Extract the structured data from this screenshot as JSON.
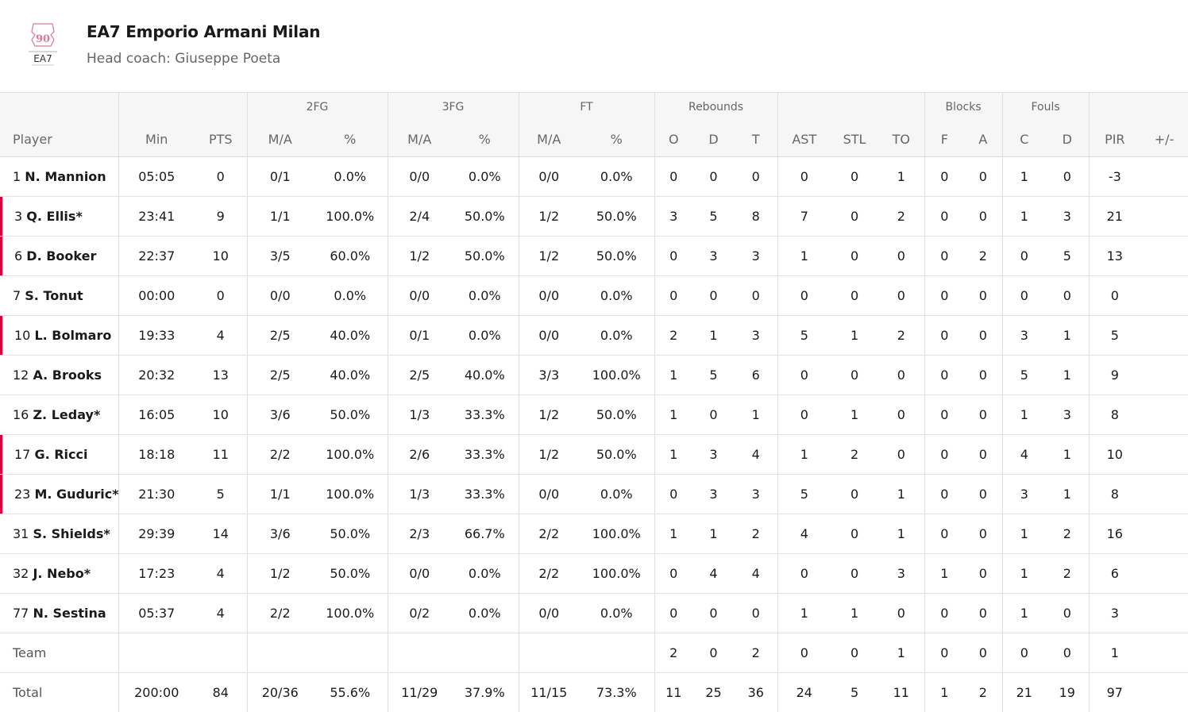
{
  "team": {
    "name": "EA7 Emporio Armani Milan",
    "coach": "Head coach: Giuseppe Poeta",
    "logo_text": "EA7",
    "logo_number": "90",
    "accent_color": "#d5003b"
  },
  "groups": {
    "fg2": "2FG",
    "fg3": "3FG",
    "ft": "FT",
    "rebounds": "Rebounds",
    "blocks": "Blocks",
    "fouls": "Fouls"
  },
  "columns": {
    "player": "Player",
    "min": "Min",
    "pts": "PTS",
    "fg2_ma": "M/A",
    "fg2_pct": "%",
    "fg3_ma": "M/A",
    "fg3_pct": "%",
    "ft_ma": "M/A",
    "ft_pct": "%",
    "reb_o": "O",
    "reb_d": "D",
    "reb_t": "T",
    "ast": "AST",
    "stl": "STL",
    "to": "TO",
    "blk_f": "F",
    "blk_a": "A",
    "foul_c": "C",
    "foul_d": "D",
    "pir": "PIR",
    "plusminus": "+/-"
  },
  "players": [
    {
      "num": "1",
      "name": "N. Mannion",
      "starter": false,
      "min": "05:05",
      "pts": "0",
      "fg2_ma": "0/1",
      "fg2_pct": "0.0%",
      "fg3_ma": "0/0",
      "fg3_pct": "0.0%",
      "ft_ma": "0/0",
      "ft_pct": "0.0%",
      "reb_o": "0",
      "reb_d": "0",
      "reb_t": "0",
      "ast": "0",
      "stl": "0",
      "to": "1",
      "blk_f": "0",
      "blk_a": "0",
      "foul_c": "1",
      "foul_d": "0",
      "pir": "-3",
      "plusminus": ""
    },
    {
      "num": "3",
      "name": "Q. Ellis*",
      "starter": true,
      "min": "23:41",
      "pts": "9",
      "fg2_ma": "1/1",
      "fg2_pct": "100.0%",
      "fg3_ma": "2/4",
      "fg3_pct": "50.0%",
      "ft_ma": "1/2",
      "ft_pct": "50.0%",
      "reb_o": "3",
      "reb_d": "5",
      "reb_t": "8",
      "ast": "7",
      "stl": "0",
      "to": "2",
      "blk_f": "0",
      "blk_a": "0",
      "foul_c": "1",
      "foul_d": "3",
      "pir": "21",
      "plusminus": ""
    },
    {
      "num": "6",
      "name": "D. Booker",
      "starter": true,
      "min": "22:37",
      "pts": "10",
      "fg2_ma": "3/5",
      "fg2_pct": "60.0%",
      "fg3_ma": "1/2",
      "fg3_pct": "50.0%",
      "ft_ma": "1/2",
      "ft_pct": "50.0%",
      "reb_o": "0",
      "reb_d": "3",
      "reb_t": "3",
      "ast": "1",
      "stl": "0",
      "to": "0",
      "blk_f": "0",
      "blk_a": "2",
      "foul_c": "0",
      "foul_d": "5",
      "pir": "13",
      "plusminus": ""
    },
    {
      "num": "7",
      "name": "S. Tonut",
      "starter": false,
      "min": "00:00",
      "pts": "0",
      "fg2_ma": "0/0",
      "fg2_pct": "0.0%",
      "fg3_ma": "0/0",
      "fg3_pct": "0.0%",
      "ft_ma": "0/0",
      "ft_pct": "0.0%",
      "reb_o": "0",
      "reb_d": "0",
      "reb_t": "0",
      "ast": "0",
      "stl": "0",
      "to": "0",
      "blk_f": "0",
      "blk_a": "0",
      "foul_c": "0",
      "foul_d": "0",
      "pir": "0",
      "plusminus": ""
    },
    {
      "num": "10",
      "name": "L. Bolmaro",
      "starter": true,
      "min": "19:33",
      "pts": "4",
      "fg2_ma": "2/5",
      "fg2_pct": "40.0%",
      "fg3_ma": "0/1",
      "fg3_pct": "0.0%",
      "ft_ma": "0/0",
      "ft_pct": "0.0%",
      "reb_o": "2",
      "reb_d": "1",
      "reb_t": "3",
      "ast": "5",
      "stl": "1",
      "to": "2",
      "blk_f": "0",
      "blk_a": "0",
      "foul_c": "3",
      "foul_d": "1",
      "pir": "5",
      "plusminus": ""
    },
    {
      "num": "12",
      "name": "A. Brooks",
      "starter": false,
      "min": "20:32",
      "pts": "13",
      "fg2_ma": "2/5",
      "fg2_pct": "40.0%",
      "fg3_ma": "2/5",
      "fg3_pct": "40.0%",
      "ft_ma": "3/3",
      "ft_pct": "100.0%",
      "reb_o": "1",
      "reb_d": "5",
      "reb_t": "6",
      "ast": "0",
      "stl": "0",
      "to": "0",
      "blk_f": "0",
      "blk_a": "0",
      "foul_c": "5",
      "foul_d": "1",
      "pir": "9",
      "plusminus": ""
    },
    {
      "num": "16",
      "name": "Z. Leday*",
      "starter": false,
      "min": "16:05",
      "pts": "10",
      "fg2_ma": "3/6",
      "fg2_pct": "50.0%",
      "fg3_ma": "1/3",
      "fg3_pct": "33.3%",
      "ft_ma": "1/2",
      "ft_pct": "50.0%",
      "reb_o": "1",
      "reb_d": "0",
      "reb_t": "1",
      "ast": "0",
      "stl": "1",
      "to": "0",
      "blk_f": "0",
      "blk_a": "0",
      "foul_c": "1",
      "foul_d": "3",
      "pir": "8",
      "plusminus": ""
    },
    {
      "num": "17",
      "name": "G. Ricci",
      "starter": true,
      "min": "18:18",
      "pts": "11",
      "fg2_ma": "2/2",
      "fg2_pct": "100.0%",
      "fg3_ma": "2/6",
      "fg3_pct": "33.3%",
      "ft_ma": "1/2",
      "ft_pct": "50.0%",
      "reb_o": "1",
      "reb_d": "3",
      "reb_t": "4",
      "ast": "1",
      "stl": "2",
      "to": "0",
      "blk_f": "0",
      "blk_a": "0",
      "foul_c": "4",
      "foul_d": "1",
      "pir": "10",
      "plusminus": ""
    },
    {
      "num": "23",
      "name": "M. Guduric*",
      "starter": true,
      "min": "21:30",
      "pts": "5",
      "fg2_ma": "1/1",
      "fg2_pct": "100.0%",
      "fg3_ma": "1/3",
      "fg3_pct": "33.3%",
      "ft_ma": "0/0",
      "ft_pct": "0.0%",
      "reb_o": "0",
      "reb_d": "3",
      "reb_t": "3",
      "ast": "5",
      "stl": "0",
      "to": "1",
      "blk_f": "0",
      "blk_a": "0",
      "foul_c": "3",
      "foul_d": "1",
      "pir": "8",
      "plusminus": ""
    },
    {
      "num": "31",
      "name": "S. Shields*",
      "starter": false,
      "min": "29:39",
      "pts": "14",
      "fg2_ma": "3/6",
      "fg2_pct": "50.0%",
      "fg3_ma": "2/3",
      "fg3_pct": "66.7%",
      "ft_ma": "2/2",
      "ft_pct": "100.0%",
      "reb_o": "1",
      "reb_d": "1",
      "reb_t": "2",
      "ast": "4",
      "stl": "0",
      "to": "1",
      "blk_f": "0",
      "blk_a": "0",
      "foul_c": "1",
      "foul_d": "2",
      "pir": "16",
      "plusminus": ""
    },
    {
      "num": "32",
      "name": "J. Nebo*",
      "starter": false,
      "min": "17:23",
      "pts": "4",
      "fg2_ma": "1/2",
      "fg2_pct": "50.0%",
      "fg3_ma": "0/0",
      "fg3_pct": "0.0%",
      "ft_ma": "2/2",
      "ft_pct": "100.0%",
      "reb_o": "0",
      "reb_d": "4",
      "reb_t": "4",
      "ast": "0",
      "stl": "0",
      "to": "3",
      "blk_f": "1",
      "blk_a": "0",
      "foul_c": "1",
      "foul_d": "2",
      "pir": "6",
      "plusminus": ""
    },
    {
      "num": "77",
      "name": "N. Sestina",
      "starter": false,
      "min": "05:37",
      "pts": "4",
      "fg2_ma": "2/2",
      "fg2_pct": "100.0%",
      "fg3_ma": "0/2",
      "fg3_pct": "0.0%",
      "ft_ma": "0/0",
      "ft_pct": "0.0%",
      "reb_o": "0",
      "reb_d": "0",
      "reb_t": "0",
      "ast": "1",
      "stl": "1",
      "to": "0",
      "blk_f": "0",
      "blk_a": "0",
      "foul_c": "1",
      "foul_d": "0",
      "pir": "3",
      "plusminus": ""
    }
  ],
  "team_row": {
    "label": "Team",
    "min": "",
    "pts": "",
    "fg2_ma": "",
    "fg2_pct": "",
    "fg3_ma": "",
    "fg3_pct": "",
    "ft_ma": "",
    "ft_pct": "",
    "reb_o": "2",
    "reb_d": "0",
    "reb_t": "2",
    "ast": "0",
    "stl": "0",
    "to": "1",
    "blk_f": "0",
    "blk_a": "0",
    "foul_c": "0",
    "foul_d": "0",
    "pir": "1",
    "plusminus": ""
  },
  "total_row": {
    "label": "Total",
    "min": "200:00",
    "pts": "84",
    "fg2_ma": "20/36",
    "fg2_pct": "55.6%",
    "fg3_ma": "11/29",
    "fg3_pct": "37.9%",
    "ft_ma": "11/15",
    "ft_pct": "73.3%",
    "reb_o": "11",
    "reb_d": "25",
    "reb_t": "36",
    "ast": "24",
    "stl": "5",
    "to": "11",
    "blk_f": "1",
    "blk_a": "2",
    "foul_c": "21",
    "foul_d": "19",
    "pir": "97",
    "plusminus": ""
  }
}
